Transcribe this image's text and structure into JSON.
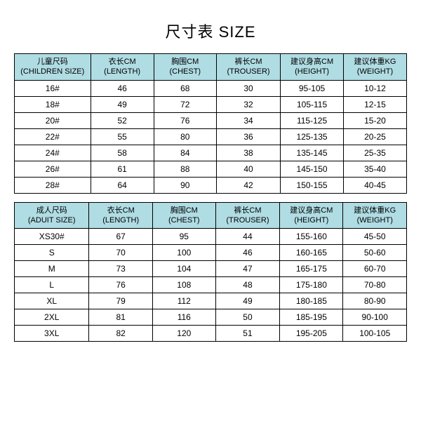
{
  "title": "尺寸表 SIZE",
  "header_bg": "#b0dce3",
  "columns": [
    {
      "zhC": "儿童尺码",
      "zhA": "成人尺码",
      "enC": "(CHILDREN SIZE)",
      "enA": "(ADUIT SIZE)"
    },
    {
      "zh": "衣长CM",
      "en": "(LENGTH)"
    },
    {
      "zh": "胸围CM",
      "en": "(CHEST)"
    },
    {
      "zh": "裤长CM",
      "en": "(TROUSER)"
    },
    {
      "zh": "建议身高CM",
      "en": "(HEIGHT)"
    },
    {
      "zh": "建议体重KG",
      "en": "(WEIGHT)"
    }
  ],
  "children_rows": [
    [
      "16#",
      "46",
      "68",
      "30",
      "95-105",
      "10-12"
    ],
    [
      "18#",
      "49",
      "72",
      "32",
      "105-115",
      "12-15"
    ],
    [
      "20#",
      "52",
      "76",
      "34",
      "115-125",
      "15-20"
    ],
    [
      "22#",
      "55",
      "80",
      "36",
      "125-135",
      "20-25"
    ],
    [
      "24#",
      "58",
      "84",
      "38",
      "135-145",
      "25-35"
    ],
    [
      "26#",
      "61",
      "88",
      "40",
      "145-150",
      "35-40"
    ],
    [
      "28#",
      "64",
      "90",
      "42",
      "150-155",
      "40-45"
    ]
  ],
  "adult_rows": [
    [
      "XS30#",
      "67",
      "95",
      "44",
      "155-160",
      "45-50"
    ],
    [
      "S",
      "70",
      "100",
      "46",
      "160-165",
      "50-60"
    ],
    [
      "M",
      "73",
      "104",
      "47",
      "165-175",
      "60-70"
    ],
    [
      "L",
      "76",
      "108",
      "48",
      "175-180",
      "70-80"
    ],
    [
      "XL",
      "79",
      "112",
      "49",
      "180-185",
      "80-90"
    ],
    [
      "2XL",
      "81",
      "116",
      "50",
      "185-195",
      "90-100"
    ],
    [
      "3XL",
      "82",
      "120",
      "51",
      "195-205",
      "100-105"
    ]
  ]
}
